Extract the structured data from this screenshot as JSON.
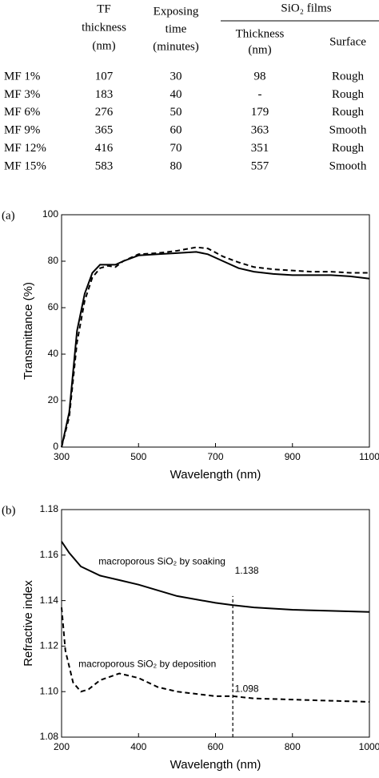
{
  "table": {
    "header": {
      "tf": [
        "TF",
        "thickness",
        "(nm)"
      ],
      "time": [
        "Exposing",
        "time",
        "(minutes)"
      ],
      "group": "SiO₂ films",
      "thickness": [
        "Thickness",
        "(nm)"
      ],
      "surface": "Surface"
    },
    "rows": [
      [
        "MF 1%",
        "107",
        "30",
        "98",
        "Rough"
      ],
      [
        "MF 3%",
        "183",
        "40",
        "-",
        "Rough"
      ],
      [
        "MF 6%",
        "276",
        "50",
        "179",
        "Rough"
      ],
      [
        "MF 9%",
        "365",
        "60",
        "363",
        "Smooth"
      ],
      [
        "MF 12%",
        "416",
        "70",
        "351",
        "Rough"
      ],
      [
        "MF 15%",
        "583",
        "80",
        "557",
        "Smooth"
      ]
    ]
  },
  "chart_data": [
    {
      "type": "line",
      "panel_label": "(a)",
      "x_label": "Wavelength (nm)",
      "y_label": "Transmittance (%)",
      "xlim": [
        300,
        1100
      ],
      "xticks": [
        300,
        500,
        700,
        900,
        1100
      ],
      "ylim": [
        0,
        100
      ],
      "yticks": [
        0,
        20,
        40,
        60,
        80,
        100
      ],
      "series": [
        {
          "color": "#000000",
          "linestyle": "solid",
          "x": [
            300,
            320,
            340,
            360,
            380,
            400,
            440,
            460,
            500,
            550,
            600,
            650,
            680,
            720,
            760,
            800,
            850,
            900,
            950,
            1000,
            1050,
            1100
          ],
          "values": [
            0,
            15,
            50,
            66,
            75,
            78.5,
            78.5,
            80,
            82.5,
            83,
            83.5,
            84,
            83,
            80,
            77,
            75.5,
            74.5,
            74,
            74,
            74,
            73.5,
            72.5
          ]
        },
        {
          "color": "#000000",
          "linestyle": "dashed",
          "x": [
            300,
            320,
            340,
            360,
            380,
            400,
            420,
            440,
            460,
            500,
            550,
            600,
            650,
            680,
            720,
            760,
            800,
            850,
            900,
            950,
            1000,
            1050,
            1100
          ],
          "values": [
            0,
            13,
            45,
            63,
            73,
            77,
            78,
            77.5,
            80,
            83,
            83.5,
            84.5,
            86,
            85.5,
            82,
            79.5,
            77.5,
            76.5,
            76,
            75.5,
            75.5,
            75,
            75
          ]
        }
      ]
    },
    {
      "type": "line",
      "panel_label": "(b)",
      "x_label": "Wavelength (nm)",
      "y_label": "Refractive index",
      "xlim": [
        200,
        1000
      ],
      "xticks": [
        200,
        400,
        600,
        800,
        1000
      ],
      "ylim": [
        1.08,
        1.18
      ],
      "yticks": [
        1.08,
        {
          "value": 1.1,
          "label": "1.10"
        },
        1.12,
        1.14,
        1.16,
        1.18
      ],
      "series": [
        {
          "color": "#000000",
          "linestyle": "solid",
          "x": [
            200,
            220,
            250,
            300,
            350,
            400,
            500,
            600,
            645,
            700,
            800,
            900,
            1000
          ],
          "values": [
            1.166,
            1.161,
            1.155,
            1.151,
            1.149,
            1.147,
            1.142,
            1.139,
            1.138,
            1.137,
            1.136,
            1.1355,
            1.135
          ]
        },
        {
          "color": "#000000",
          "linestyle": "dashed",
          "x": [
            200,
            210,
            230,
            250,
            270,
            300,
            350,
            400,
            450,
            500,
            600,
            645,
            700,
            800,
            900,
            1000
          ],
          "values": [
            1.137,
            1.118,
            1.104,
            1.1,
            1.101,
            1.105,
            1.108,
            1.106,
            1.102,
            1.1,
            1.098,
            1.098,
            1.097,
            1.0965,
            1.096,
            1.0955
          ]
        }
      ],
      "annotations": [
        {
          "text": "macroporous SiO₂ by soaking",
          "x": 296,
          "y": 1.157
        },
        {
          "text": "macroporous SiO₂ by deposition",
          "x": 244,
          "y": 1.112
        },
        {
          "text": "1.138",
          "x": 650,
          "y": 1.153
        },
        {
          "text": "1.098",
          "x": 650,
          "y": 1.101
        }
      ],
      "vline": {
        "x": 645,
        "y1": 1.08,
        "y2": 1.142
      }
    }
  ]
}
